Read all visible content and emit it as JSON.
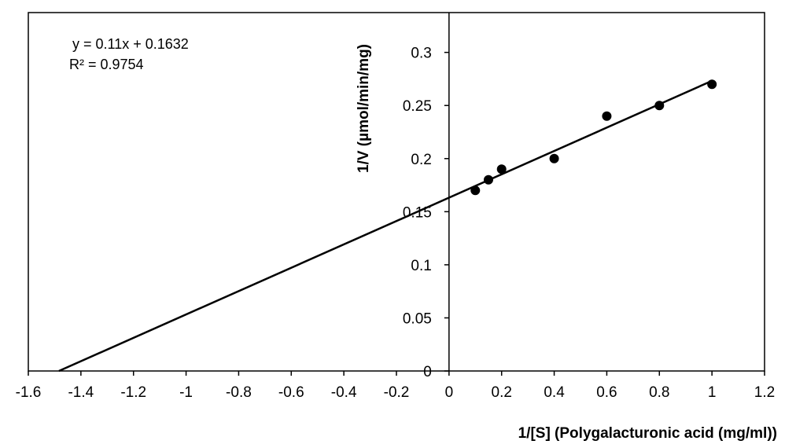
{
  "chart_data": {
    "type": "scatter",
    "points": [
      {
        "x": 0.1,
        "y": 0.17
      },
      {
        "x": 0.15,
        "y": 0.18
      },
      {
        "x": 0.2,
        "y": 0.19
      },
      {
        "x": 0.4,
        "y": 0.2
      },
      {
        "x": 0.6,
        "y": 0.24
      },
      {
        "x": 0.8,
        "y": 0.25
      },
      {
        "x": 1.0,
        "y": 0.27
      }
    ],
    "trendline": {
      "slope": 0.11,
      "intercept": 0.1632,
      "x_start": -1.4836,
      "x_end": 1.0
    },
    "equation_text": "y = 0.11x + 0.1632",
    "r2_text": "R² = 0.9754",
    "xlabel": "1/[S] (Polygalacturonic acid (mg/ml))",
    "ylabel": "1/V (µmol/min/mg)",
    "xlim": [
      -1.6,
      1.2
    ],
    "ylim": [
      0,
      0.3375
    ],
    "x_ticks": [
      -1.6,
      -1.4,
      -1.2,
      -1,
      -0.8,
      -0.6,
      -0.4,
      -0.2,
      0,
      0.2,
      0.4,
      0.6,
      0.8,
      1,
      1.2
    ],
    "x_tick_labels": [
      "-1.6",
      "-1.4",
      "-1.2",
      "-1",
      "-0.8",
      "-0.6",
      "-0.4",
      "-0.2",
      "0",
      "0.2",
      "0.4",
      "0.6",
      "0.8",
      "1",
      "1.2"
    ],
    "y_ticks": [
      0,
      0.05,
      0.1,
      0.15,
      0.2,
      0.25,
      0.3
    ],
    "y_tick_labels": [
      "0",
      "0.05",
      "0.1",
      "0.15",
      "0.2",
      "0.25",
      "0.3"
    ],
    "grid": false,
    "colors": {
      "marker": "#000000",
      "line": "#000000",
      "axes": "#000000"
    }
  }
}
